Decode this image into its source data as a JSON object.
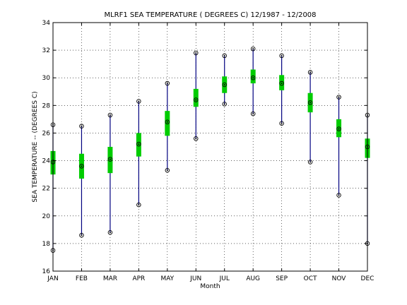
{
  "chart_data": {
    "type": "box",
    "title": "MLRF1  SEA TEMPERATURE ( DEGREES C) 12/1987 - 12/2008",
    "xlabel": "Month",
    "ylabel": "SEA TEMPERATURE -- (DEGREES C)",
    "categories": [
      "JAN",
      "FEB",
      "MAR",
      "APR",
      "MAY",
      "JUN",
      "JUL",
      "AUG",
      "SEP",
      "OCT",
      "NOV",
      "DEC"
    ],
    "ylim": [
      16,
      34
    ],
    "yticks": [
      16,
      18,
      20,
      22,
      24,
      26,
      28,
      30,
      32,
      34
    ],
    "grid": true,
    "min": [
      17.5,
      18.6,
      18.8,
      20.8,
      23.3,
      25.6,
      28.1,
      27.4,
      26.7,
      23.9,
      21.5,
      18.0
    ],
    "max": [
      26.6,
      26.5,
      27.3,
      28.3,
      29.6,
      31.8,
      31.6,
      32.1,
      31.6,
      30.4,
      28.6,
      27.3
    ],
    "mean": [
      23.9,
      23.6,
      24.1,
      25.2,
      26.8,
      28.4,
      29.5,
      30.0,
      29.6,
      28.2,
      26.3,
      25.0
    ],
    "q_low": [
      23.0,
      22.7,
      23.1,
      24.3,
      25.8,
      27.9,
      28.9,
      29.6,
      29.1,
      27.5,
      25.7,
      24.2
    ],
    "q_high": [
      24.7,
      24.5,
      25.0,
      26.0,
      27.6,
      29.2,
      30.1,
      30.6,
      30.2,
      28.9,
      27.0,
      25.6
    ],
    "colors": {
      "whisker": "#000080",
      "box": "#00cc00",
      "marker": "#000000",
      "grid": "#000000"
    }
  }
}
